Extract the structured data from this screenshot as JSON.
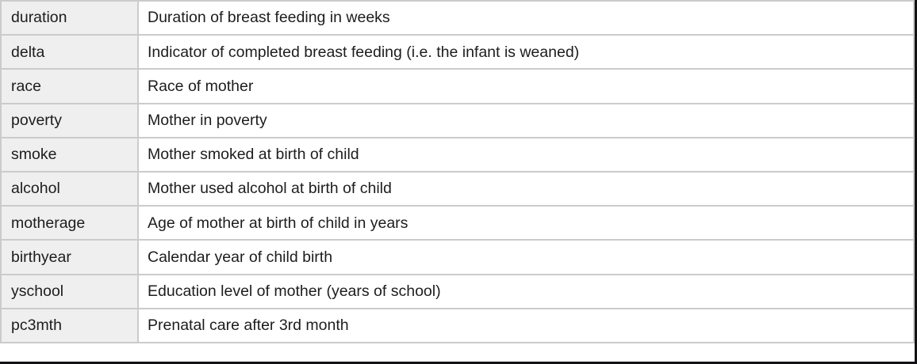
{
  "table": {
    "rows": [
      {
        "name": "duration",
        "description": "Duration of breast feeding in weeks"
      },
      {
        "name": "delta",
        "description": "Indicator of completed breast feeding (i.e. the infant is weaned)"
      },
      {
        "name": "race",
        "description": "Race of mother"
      },
      {
        "name": "poverty",
        "description": "Mother in poverty"
      },
      {
        "name": "smoke",
        "description": "Mother smoked at birth of child"
      },
      {
        "name": "alcohol",
        "description": "Mother used alcohol at birth of child"
      },
      {
        "name": "motherage",
        "description": "Age of mother at birth of child in years"
      },
      {
        "name": "birthyear",
        "description": "Calendar year of child birth"
      },
      {
        "name": "yschool",
        "description": "Education level of mother (years of school)"
      },
      {
        "name": "pc3mth",
        "description": "Prenatal care after 3rd month"
      }
    ]
  },
  "colors": {
    "variable_cell_background": "#efefef",
    "description_cell_background": "#ffffff",
    "cell_border": "#cbcbcb",
    "frame_edge": "#121216",
    "text": "#1d1d1f"
  }
}
